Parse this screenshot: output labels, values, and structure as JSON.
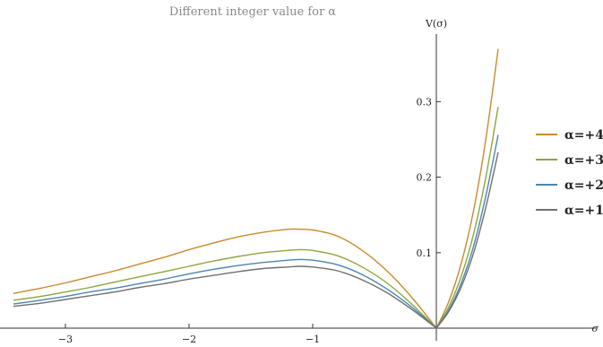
{
  "chart_data": {
    "type": "line",
    "title": "Different integer value for α",
    "xlabel": "σ",
    "ylabel": "V(σ)",
    "xlim": [
      -3.42,
      0.5
    ],
    "ylim": [
      0,
      0.385
    ],
    "x_ticks": [
      -3,
      -2,
      -1
    ],
    "x_tick_labels": [
      "−3",
      "−2",
      "−1"
    ],
    "y_ticks": [
      0.1,
      0.2,
      0.3
    ],
    "y_tick_labels": [
      "0.1",
      "0.2",
      "0.3"
    ],
    "grid": false,
    "legend_position": "right",
    "x": [
      -3.42,
      -3.2,
      -3.0,
      -2.8,
      -2.6,
      -2.4,
      -2.2,
      -2.0,
      -1.8,
      -1.6,
      -1.4,
      -1.2,
      -1.1,
      -1.0,
      -0.8,
      -0.6,
      -0.4,
      -0.2,
      0.0,
      0.1,
      0.2,
      0.3,
      0.4,
      0.5
    ],
    "series": [
      {
        "name": "α=+4",
        "color": "#c88b2e",
        "values": [
          0.046,
          0.053,
          0.06,
          0.068,
          0.076,
          0.085,
          0.094,
          0.104,
          0.113,
          0.121,
          0.127,
          0.131,
          0.131,
          0.13,
          0.122,
          0.103,
          0.076,
          0.041,
          0.0,
          0.035,
          0.085,
          0.155,
          0.25,
          0.37
        ]
      },
      {
        "name": "α=+3",
        "color": "#8aa83a",
        "values": [
          0.037,
          0.042,
          0.048,
          0.054,
          0.061,
          0.068,
          0.075,
          0.082,
          0.089,
          0.095,
          0.1,
          0.103,
          0.104,
          0.103,
          0.096,
          0.081,
          0.06,
          0.032,
          0.0,
          0.028,
          0.068,
          0.124,
          0.2,
          0.293
        ]
      },
      {
        "name": "α=+2",
        "color": "#4a86b3",
        "values": [
          0.032,
          0.037,
          0.042,
          0.048,
          0.053,
          0.059,
          0.065,
          0.072,
          0.078,
          0.083,
          0.087,
          0.09,
          0.091,
          0.09,
          0.084,
          0.071,
          0.052,
          0.028,
          0.0,
          0.024,
          0.059,
          0.108,
          0.175,
          0.256
        ]
      },
      {
        "name": "α=+1",
        "color": "#707070",
        "values": [
          0.029,
          0.033,
          0.038,
          0.043,
          0.048,
          0.054,
          0.059,
          0.065,
          0.07,
          0.075,
          0.079,
          0.081,
          0.082,
          0.081,
          0.076,
          0.064,
          0.047,
          0.025,
          0.0,
          0.022,
          0.054,
          0.099,
          0.16,
          0.233
        ]
      }
    ]
  }
}
